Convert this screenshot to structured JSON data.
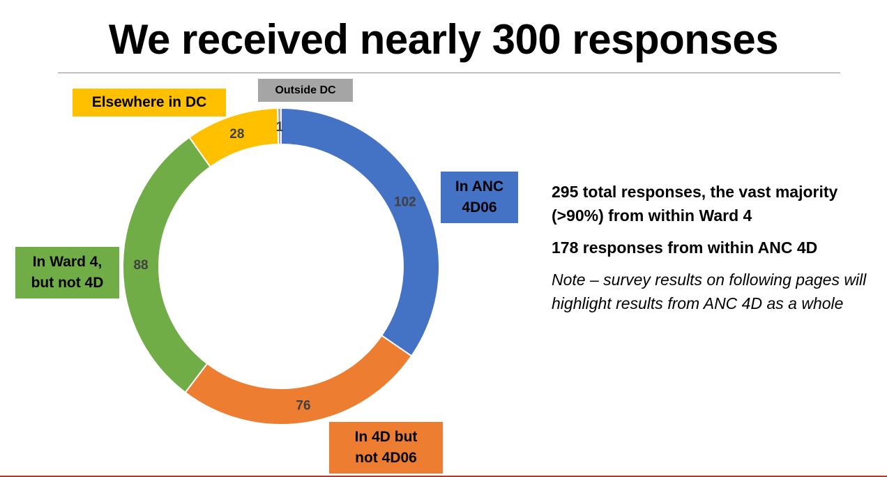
{
  "title": "We received nearly 300 responses",
  "chart_data": {
    "type": "pie",
    "variant": "donut",
    "slices": [
      {
        "label": "In ANC 4D06",
        "value": 102,
        "color": "#4472C4"
      },
      {
        "label": "In 4D but not 4D06",
        "value": 76,
        "color": "#ED7D31"
      },
      {
        "label": "In Ward 4, but not 4D",
        "value": 88,
        "color": "#70AD47"
      },
      {
        "label": "Elsewhere in DC",
        "value": 28,
        "color": "#FFC000"
      },
      {
        "label": "Outside DC",
        "value": 1,
        "color": "#A5A5A5"
      }
    ],
    "total": 295
  },
  "labels": {
    "anc": {
      "line1": "In ANC",
      "line2": "4D06"
    },
    "fourd": {
      "line1": "In 4D but",
      "line2": "not 4D06"
    },
    "ward4": {
      "line1": "In Ward 4,",
      "line2": "but not 4D"
    },
    "elsewhere": "Elsewhere in DC",
    "outside": "Outside DC"
  },
  "summary": {
    "line1": "295 total responses, the vast majority (>90%) from within Ward 4",
    "line2": "178 responses from within ANC 4D",
    "note": "Note – survey results on following pages will highlight results from ANC 4D as a whole"
  }
}
